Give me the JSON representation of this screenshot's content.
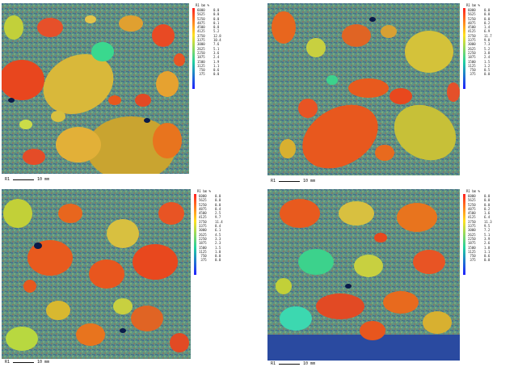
{
  "panels": [
    {
      "key": "a",
      "label": "R1",
      "scale_text": "10 mm",
      "bar_header": "R1 bm %"
    },
    {
      "key": "b",
      "label": "R1",
      "scale_text": "10 mm",
      "bar_header": "R1 bm %"
    },
    {
      "key": "c",
      "label": "R1",
      "scale_text": "10 mm",
      "bar_header": "R1 bm %"
    },
    {
      "key": "d",
      "label": "R1",
      "scale_text": "10 mm",
      "bar_header": "R1 bm %"
    }
  ],
  "colors": {
    "matrix": "#5c8c7a",
    "aggregate_hi": "#e8401e",
    "aggregate_mid": "#e0b030",
    "aggregate_low": "#9ad23c",
    "aggregate_cool": "#3cd28c",
    "void": "#0a1a4a",
    "colorbar_top": "#ff2020",
    "colorbar_bottom": "#2020ff"
  }
}
